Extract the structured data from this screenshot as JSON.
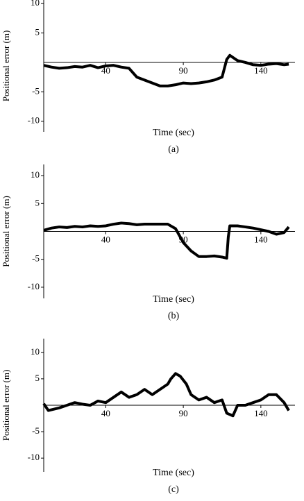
{
  "chart_data": [
    {
      "type": "line",
      "xlabel": "Time (sec)",
      "ylabel": "Positional error (m)",
      "caption": "(a)",
      "x": [
        0,
        5,
        10,
        15,
        20,
        25,
        30,
        35,
        40,
        45,
        50,
        55,
        60,
        65,
        70,
        75,
        80,
        85,
        90,
        95,
        100,
        105,
        110,
        115,
        118,
        120,
        125,
        130,
        135,
        140,
        145,
        150,
        155,
        158
      ],
      "series": [
        {
          "name": "a",
          "color": "#000000",
          "values": [
            -0.5,
            -0.8,
            -1,
            -0.9,
            -0.7,
            -0.8,
            -0.5,
            -0.9,
            -0.6,
            -0.5,
            -0.8,
            -1,
            -2.5,
            -3,
            -3.5,
            -4,
            -4,
            -3.8,
            -3.5,
            -3.6,
            -3.5,
            -3.3,
            -3,
            -2.5,
            0.5,
            1.2,
            0.3,
            0,
            -0.4,
            -0.5,
            -0.3,
            -0.2,
            -0.4,
            -0.3
          ]
        }
      ],
      "xlim": [
        0,
        162
      ],
      "ylim": [
        -11.8,
        10.6
      ],
      "xticks": [
        40,
        90,
        140
      ],
      "yticks": [
        -10,
        -5,
        5,
        10
      ]
    },
    {
      "type": "line",
      "xlabel": "Time (sec)",
      "ylabel": "Positional error (m)",
      "caption": "(b)",
      "x": [
        0,
        5,
        10,
        15,
        20,
        25,
        30,
        35,
        40,
        45,
        50,
        55,
        60,
        65,
        70,
        75,
        80,
        85,
        90,
        95,
        100,
        105,
        110,
        115,
        118,
        119,
        120,
        125,
        130,
        135,
        140,
        145,
        150,
        155,
        158
      ],
      "series": [
        {
          "name": "b",
          "color": "#000000",
          "values": [
            0.2,
            0.6,
            0.8,
            0.7,
            0.9,
            0.8,
            1,
            0.9,
            1,
            1.3,
            1.5,
            1.4,
            1.2,
            1.3,
            1.3,
            1.3,
            1.3,
            0.5,
            -2,
            -3.5,
            -4.5,
            -4.5,
            -4.4,
            -4.6,
            -4.8,
            -1,
            1,
            1,
            0.8,
            0.6,
            0.3,
            0,
            -0.5,
            -0.2,
            0.8
          ]
        }
      ],
      "xlim": [
        0,
        162
      ],
      "ylim": [
        -12,
        12
      ],
      "xticks": [
        40,
        90,
        140
      ],
      "yticks": [
        -10,
        -5,
        5,
        10
      ]
    },
    {
      "type": "line",
      "xlabel": "Time (sec)",
      "ylabel": "Positional error (m)",
      "caption": "(c)",
      "x": [
        0,
        3,
        10,
        15,
        20,
        25,
        30,
        35,
        40,
        45,
        50,
        55,
        60,
        65,
        70,
        75,
        80,
        82,
        85,
        88,
        92,
        95,
        100,
        105,
        110,
        115,
        118,
        122,
        125,
        130,
        135,
        140,
        145,
        150,
        155,
        158
      ],
      "series": [
        {
          "name": "c",
          "color": "#000000",
          "values": [
            0.3,
            -1,
            -0.5,
            0,
            0.5,
            0.2,
            0,
            0.8,
            0.5,
            1.5,
            2.5,
            1.5,
            2,
            3,
            2,
            3,
            4,
            5,
            6,
            5.5,
            4,
            2,
            1,
            1.5,
            0.5,
            1,
            -1.5,
            -2,
            0,
            0,
            0.5,
            1,
            2,
            2,
            0.5,
            -1
          ]
        }
      ],
      "xlim": [
        0,
        162
      ],
      "ylim": [
        -12.6,
        12.6
      ],
      "xticks": [
        40,
        90,
        140
      ],
      "yticks": [
        -10,
        -5,
        5,
        10
      ]
    }
  ]
}
